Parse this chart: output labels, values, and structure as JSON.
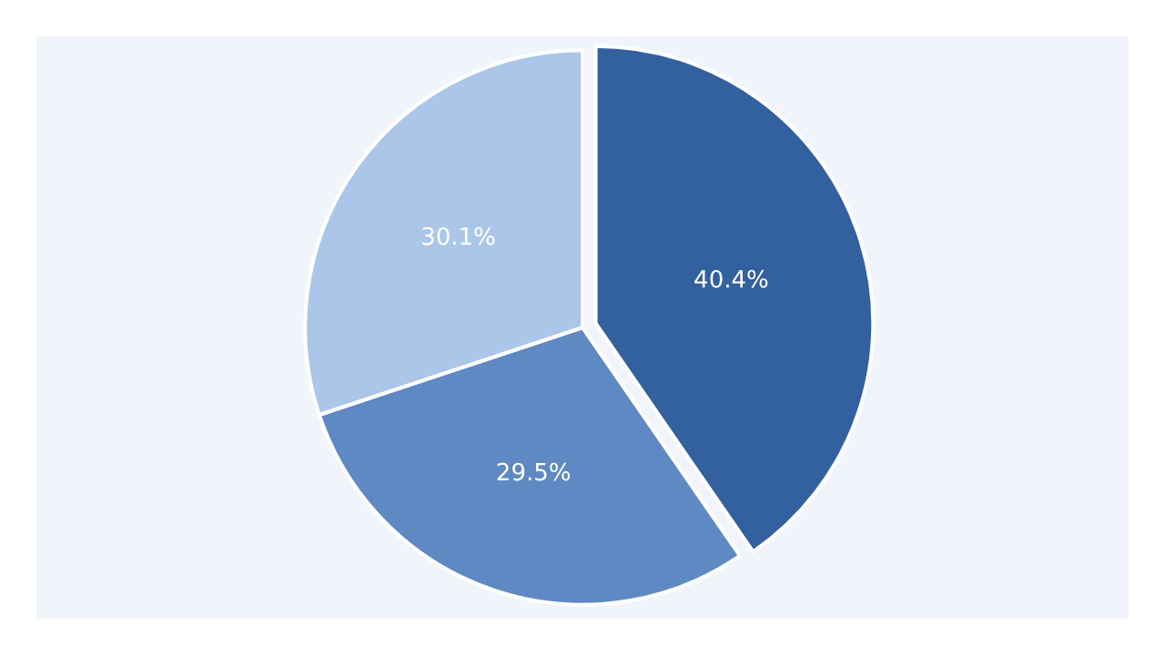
{
  "chart_data": {
    "type": "pie",
    "categories": [
      null,
      null,
      null
    ],
    "values": [
      40.4,
      29.5,
      30.1
    ],
    "value_labels": [
      "40.4%",
      "29.5%",
      "30.1%"
    ],
    "colors": [
      "#33609f",
      "#5f89c2",
      "#abc6e8"
    ],
    "legend": false
  }
}
